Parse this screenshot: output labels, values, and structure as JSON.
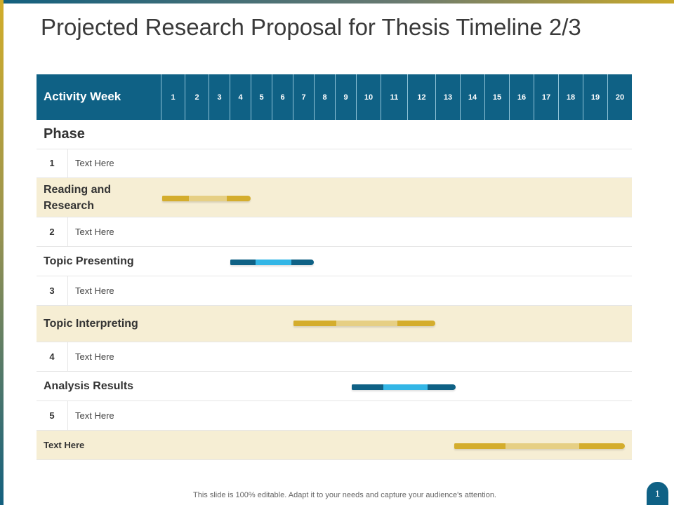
{
  "title": "Projected Research Proposal for Thesis Timeline 2/3",
  "header": {
    "label": "Activity Week",
    "weeks": [
      "1",
      "2",
      "3",
      "4",
      "5",
      "6",
      "7",
      "8",
      "9",
      "10",
      "11",
      "12",
      "13",
      "14",
      "15",
      "16",
      "17",
      "18",
      "19",
      "20"
    ]
  },
  "phase_label": "Phase",
  "rows": [
    {
      "num": "1",
      "text": "Text Here"
    },
    {
      "phase": "Reading and Research",
      "bar_weeks": [
        1,
        4
      ]
    },
    {
      "num": "2",
      "text": "Text Here"
    },
    {
      "phase": "Topic Presenting",
      "bar_weeks": [
        4,
        7
      ]
    },
    {
      "num": "3",
      "text": "Text Here"
    },
    {
      "phase": "Topic Interpreting",
      "bar_weeks": [
        7,
        12
      ]
    },
    {
      "num": "4",
      "text": "Text Here"
    },
    {
      "phase": "Analysis Results",
      "bar_weeks": [
        9,
        13
      ]
    },
    {
      "num": "5",
      "text": "Text Here"
    },
    {
      "phase": "Text Here",
      "bar_weeks": [
        13,
        20
      ]
    }
  ],
  "colors": {
    "header": "#0f6185",
    "gold": "#d4ad2d",
    "light_gold": "#e6cf84",
    "light_blue": "#33b6e6",
    "beige": "#f6eed4"
  },
  "footer": "This slide is 100% editable. Adapt it to your needs and capture your audience's attention.",
  "page_number": "1"
}
